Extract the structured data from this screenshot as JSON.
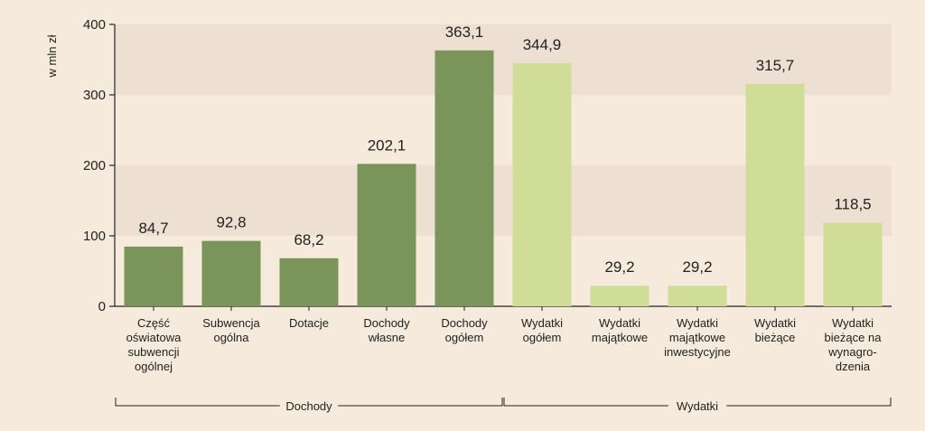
{
  "chart_data": {
    "type": "bar",
    "ylabel": "w mln zł",
    "ylim": [
      0,
      400
    ],
    "yticks": [
      "0",
      "100",
      "200",
      "300",
      "400"
    ],
    "grid": "alternating horizontal bands",
    "categories": [
      [
        "Część",
        "oświatowa",
        "subwencji",
        "ogólnej"
      ],
      [
        "Subwencja",
        "ogólna"
      ],
      [
        "Dotacje"
      ],
      [
        "Dochody",
        "własne"
      ],
      [
        "Dochody",
        "ogółem"
      ],
      [
        "Wydatki",
        "ogółem"
      ],
      [
        "Wydatki",
        "majątkowe"
      ],
      [
        "Wydatki",
        "majątkowe",
        "inwestycyjne"
      ],
      [
        "Wydatki",
        "bieżące"
      ],
      [
        "Wydatki",
        "bieżące na",
        "wynagro-",
        "dzenia"
      ]
    ],
    "values": [
      84.7,
      92.8,
      68.2,
      202.1,
      363.1,
      344.9,
      29.2,
      29.2,
      315.7,
      118.5
    ],
    "value_labels": [
      "84,7",
      "92,8",
      "68,2",
      "202,1",
      "363,1",
      "344,9",
      "29,2",
      "29,2",
      "315,7",
      "118,5"
    ],
    "groups": [
      {
        "label": "Dochody",
        "first": 0,
        "last": 4,
        "color": "#7a9459"
      },
      {
        "label": "Wydatki",
        "first": 5,
        "last": 9,
        "color": "#cfdd96"
      }
    ]
  }
}
